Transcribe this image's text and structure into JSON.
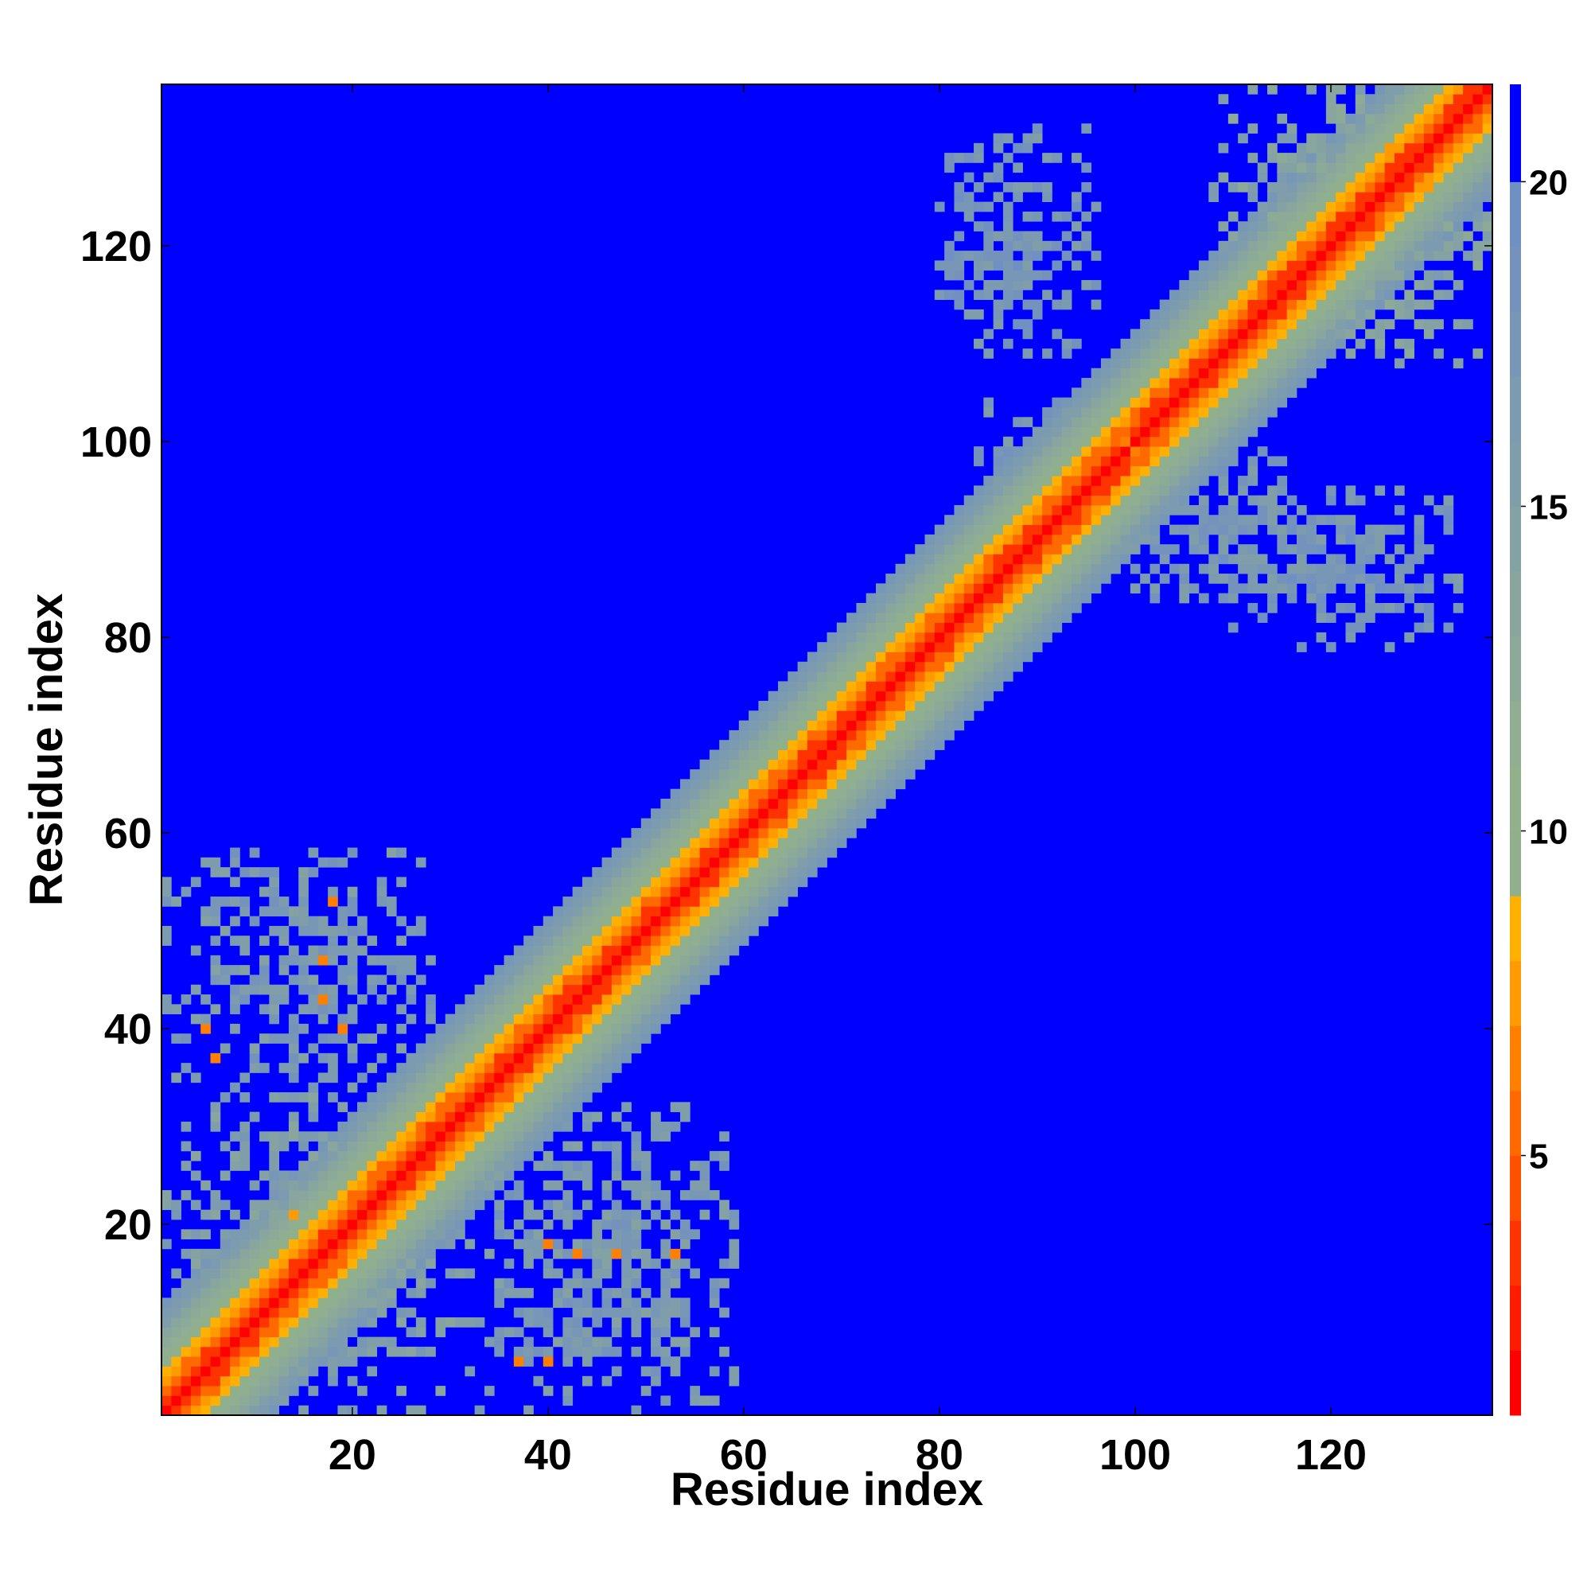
{
  "chart_data": {
    "type": "heatmap",
    "title": "",
    "xlabel": "Residue index",
    "ylabel": "Residue index",
    "n_residues": 136,
    "xlim": [
      1,
      136
    ],
    "ylim": [
      1,
      136
    ],
    "xticks": [
      20,
      40,
      60,
      80,
      100,
      120
    ],
    "yticks": [
      20,
      40,
      60,
      80,
      100,
      120
    ],
    "colorbar": {
      "range": [
        1,
        21.5
      ],
      "ticks": [
        5,
        10,
        15,
        20
      ],
      "level_edges": [
        1,
        2,
        3,
        4,
        5,
        6,
        7,
        8,
        9,
        10,
        11,
        12,
        13,
        14,
        15,
        16,
        17,
        18,
        19,
        20,
        21.5
      ],
      "level_colors": [
        "#ff0000",
        "#ff1a00",
        "#ff3300",
        "#ff5000",
        "#ff6a00",
        "#ff8000",
        "#ff9a00",
        "#ffb000",
        "#8fb08a",
        "#92b08a",
        "#8fae92",
        "#8caa98",
        "#88a69e",
        "#84a2a4",
        "#809eaa",
        "#7c9ab0",
        "#7896b6",
        "#7492bc",
        "#7090c4",
        "#0000ff"
      ]
    },
    "background_color": "#0000ff",
    "diagonal_band": {
      "description_values": "distance increases away from diagonal",
      "profile_by_offset": [
        {
          "offset": 0,
          "value": 1.5
        },
        {
          "offset": 1,
          "value": 3.8
        },
        {
          "offset": 2,
          "value": 5.5
        },
        {
          "offset": 3,
          "value": 7.0
        },
        {
          "offset": 4,
          "value": 8.6
        },
        {
          "offset": 5,
          "value": 9.8
        },
        {
          "offset": 6,
          "value": 11.2
        },
        {
          "offset": 7,
          "value": 12.5
        },
        {
          "offset": 8,
          "value": 13.8
        },
        {
          "offset": 9,
          "value": 15.2
        },
        {
          "offset": 10,
          "value": 16.4
        },
        {
          "offset": 11,
          "value": 17.6
        }
      ]
    },
    "contact_patches": [
      {
        "x_range": [
          1,
          32
        ],
        "y_range": [
          1,
          33
        ],
        "value": 15.5
      },
      {
        "x_range": [
          1,
          28
        ],
        "y_range": [
          33,
          58
        ],
        "value": 16.5
      },
      {
        "x_range": [
          33,
          59
        ],
        "y_range": [
          1,
          32
        ],
        "value": 16.5
      },
      {
        "x_range": [
          80,
          96
        ],
        "y_range": [
          109,
          132
        ],
        "value": 17.5
      },
      {
        "x_range": [
          108,
          133
        ],
        "y_range": [
          79,
          95
        ],
        "value": 17.5
      },
      {
        "x_range": [
          84,
          100
        ],
        "y_range": [
          94,
          104
        ],
        "value": 17.0
      },
      {
        "x_range": [
          96,
          115
        ],
        "y_range": [
          84,
          99
        ],
        "value": 17.0
      },
      {
        "x_range": [
          108,
          136
        ],
        "y_range": [
          108,
          136
        ],
        "value": 14.5
      }
    ],
    "orange_spots": [
      {
        "x": 5,
        "y": 40,
        "value": 6.5
      },
      {
        "x": 6,
        "y": 37,
        "value": 6.5
      },
      {
        "x": 17,
        "y": 47,
        "value": 6.5
      },
      {
        "x": 17,
        "y": 43,
        "value": 6.5
      },
      {
        "x": 18,
        "y": 53,
        "value": 6.5
      },
      {
        "x": 19,
        "y": 40,
        "value": 6.5
      },
      {
        "x": 14,
        "y": 21,
        "value": 7.0
      },
      {
        "x": 16,
        "y": 19,
        "value": 7.0
      },
      {
        "x": 40,
        "y": 18,
        "value": 6.5
      },
      {
        "x": 43,
        "y": 17,
        "value": 6.5
      },
      {
        "x": 47,
        "y": 17,
        "value": 6.5
      },
      {
        "x": 53,
        "y": 17,
        "value": 6.5
      },
      {
        "x": 37,
        "y": 6,
        "value": 6.5
      },
      {
        "x": 40,
        "y": 6,
        "value": 6.5
      },
      {
        "x": 126,
        "y": 130,
        "value": 7.0
      },
      {
        "x": 130,
        "y": 126,
        "value": 7.0
      },
      {
        "x": 99,
        "y": 100,
        "value": 6.5
      },
      {
        "x": 100,
        "y": 99,
        "value": 6.5
      }
    ]
  }
}
